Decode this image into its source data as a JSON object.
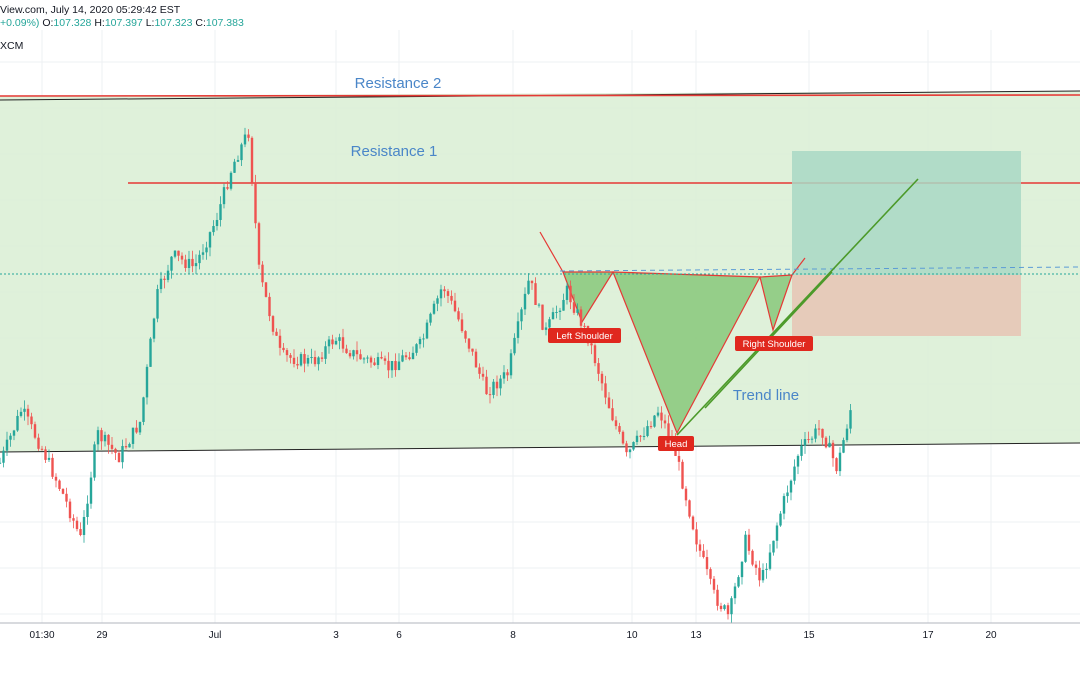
{
  "header": {
    "line1": "View.com, July 14, 2020 05:29:42 EST",
    "change": "+0.09%)",
    "o_label": "O:",
    "o_value": "107.328",
    "h_label": "H:",
    "h_value": "107.397",
    "l_label": "L:",
    "l_value": "107.323",
    "c_label": "C:",
    "c_value": "107.383",
    "source": "XCM"
  },
  "colors": {
    "channel_fill": "#d9eed3",
    "resistance": "#e53935",
    "pattern_fill": "#7cc26e",
    "trend": "#4c9a2a",
    "target_zone": "#a9d8c4",
    "stop_zone": "#e8c4b4",
    "text_blue": "#4a86c8",
    "tag_red": "#e0281e",
    "up": "#26a69a",
    "down": "#ef5350"
  },
  "chart_data": {
    "type": "candlestick",
    "annotations": {
      "resistance_2": "Resistance 2",
      "resistance_1": "Resistance 1",
      "trend_line": "Trend line",
      "left_shoulder": "Left Shoulder",
      "head": "Head",
      "right_shoulder": "Right Shoulder"
    },
    "x_ticks": [
      "01:30",
      "29",
      "Jul",
      "3",
      "6",
      "8",
      "10",
      "13",
      "15",
      "17",
      "20"
    ],
    "price_path": [
      [
        0,
        0.73
      ],
      [
        0.02,
        0.64
      ],
      [
        0.04,
        0.71
      ],
      [
        0.06,
        0.79
      ],
      [
        0.075,
        0.86
      ],
      [
        0.09,
        0.68
      ],
      [
        0.11,
        0.72
      ],
      [
        0.13,
        0.66
      ],
      [
        0.145,
        0.45
      ],
      [
        0.16,
        0.38
      ],
      [
        0.18,
        0.4
      ],
      [
        0.2,
        0.32
      ],
      [
        0.215,
        0.23
      ],
      [
        0.23,
        0.17
      ],
      [
        0.24,
        0.41
      ],
      [
        0.26,
        0.55
      ],
      [
        0.29,
        0.56
      ],
      [
        0.31,
        0.52
      ],
      [
        0.33,
        0.55
      ],
      [
        0.36,
        0.57
      ],
      [
        0.39,
        0.53
      ],
      [
        0.41,
        0.43
      ],
      [
        0.43,
        0.51
      ],
      [
        0.45,
        0.61
      ],
      [
        0.47,
        0.58
      ],
      [
        0.49,
        0.42
      ],
      [
        0.505,
        0.51
      ],
      [
        0.525,
        0.44
      ],
      [
        0.545,
        0.52
      ],
      [
        0.565,
        0.64
      ],
      [
        0.58,
        0.72
      ],
      [
        0.595,
        0.68
      ],
      [
        0.61,
        0.64
      ],
      [
        0.625,
        0.71
      ],
      [
        0.645,
        0.86
      ],
      [
        0.66,
        0.95
      ],
      [
        0.675,
        0.99
      ],
      [
        0.69,
        0.86
      ],
      [
        0.705,
        0.93
      ],
      [
        0.72,
        0.83
      ],
      [
        0.74,
        0.71
      ],
      [
        0.76,
        0.67
      ],
      [
        0.775,
        0.74
      ],
      [
        0.79,
        0.62
      ]
    ]
  }
}
